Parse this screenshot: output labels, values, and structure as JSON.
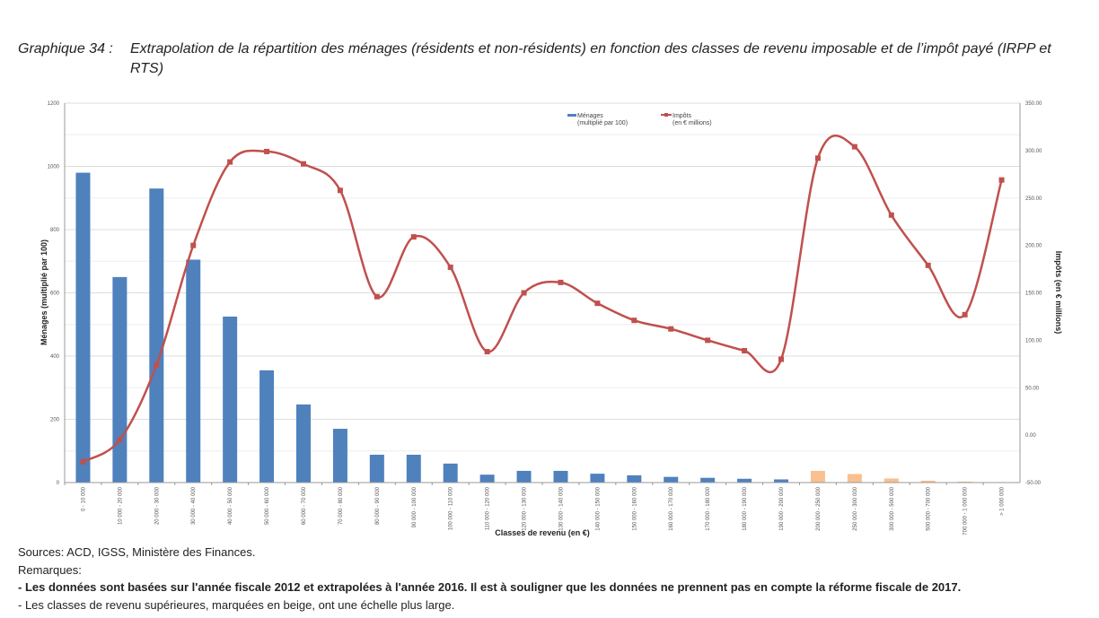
{
  "title": {
    "label": "Graphique 34 :",
    "text": "Extrapolation de la répartition des ménages (résidents et non-résidents) en fonction des classes de revenu imposable et de l’impôt payé (IRPP et RTS)"
  },
  "chart_data": {
    "type": "bar+line",
    "xlabel": "Classes de revenu (en €)",
    "ylabel": "Ménages (multiplié par 100)",
    "y2label": "Impôts (en € millions)",
    "ylim": [
      0,
      1200
    ],
    "y2lim": [
      -50,
      350
    ],
    "yticks": [
      "0",
      "200",
      "400",
      "600",
      "800",
      "1000",
      "1200"
    ],
    "y2ticks": [
      "-50.00",
      "0.00",
      "50.00",
      "100.00",
      "150.00",
      "200.00",
      "250.00",
      "300.00",
      "350.00"
    ],
    "grid": true,
    "legend_position": "top-right",
    "colors": {
      "bars": "#4F81BD",
      "bars_upper": "#FAC090",
      "line": "#C0504D"
    },
    "categories": [
      "0 - 10 000",
      "10 000 - 20 000",
      "20 000 - 30 000",
      "30 000 - 40 000",
      "40 000 - 50 000",
      "50 000 - 60 000",
      "60 000 - 70 000",
      "70 000 - 80 000",
      "80 000 - 90 000",
      "90 000 - 100 000",
      "100 000 - 110 000",
      "110 000 - 120 000",
      "120 000 - 130 000",
      "130 000 - 140 000",
      "140 000 - 150 000",
      "150 000 - 160 000",
      "160 000 - 170 000",
      "170 000 - 180 000",
      "180 000 - 190 000",
      "190 000 - 200 000",
      "200 000 - 250 000",
      "250 000 - 300 000",
      "300 000 - 500 000",
      "500 000 - 700 000",
      "700 000 - 1 000 000",
      "> 1 000 000"
    ],
    "upper_classes_from_index": 20,
    "series": [
      {
        "name": "Ménages",
        "name2": "(multiplié par 100)",
        "axis": "left",
        "type": "bar",
        "values": [
          980,
          650,
          930,
          705,
          525,
          355,
          247,
          170,
          88,
          88,
          60,
          25,
          37,
          37,
          28,
          23,
          18,
          15,
          12,
          10,
          37,
          27,
          13,
          6,
          3,
          1
        ]
      },
      {
        "name": "Impôts",
        "name2": "(en € millions)",
        "axis": "right",
        "type": "line",
        "values": [
          -28,
          -5,
          74,
          200,
          288,
          299,
          286,
          258,
          146,
          209,
          177,
          88,
          150,
          161,
          139,
          121,
          112,
          100,
          89,
          80,
          292,
          304,
          232,
          179,
          127,
          269
        ]
      }
    ]
  },
  "notes": {
    "sources": "Sources: ACD, IGSS, Ministère des Finances.",
    "remarks_label": "Remarques:",
    "remark1": "- Les données sont basées sur l'année fiscale 2012 et extrapolées à l'année 2016. Il est à souligner que les données ne prennent pas en compte la réforme fiscale de 2017.",
    "remark2": "- Les classes de revenu supérieures, marquées en beige, ont une échelle plus large."
  }
}
